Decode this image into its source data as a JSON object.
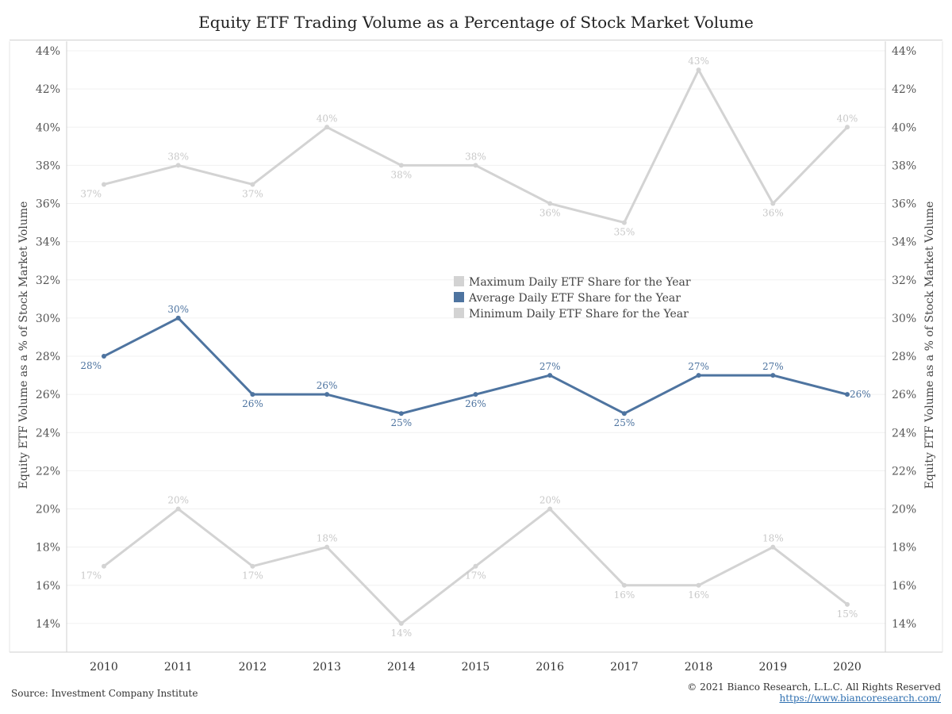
{
  "chart_data": {
    "type": "line",
    "title": "Equity ETF Trading Volume as a Percentage of Stock Market Volume",
    "ylabel": "Equity ETF Volume as a % of Stock Market Volume",
    "x": [
      "2010",
      "2011",
      "2012",
      "2013",
      "2014",
      "2015",
      "2016",
      "2017",
      "2018",
      "2019",
      "2020"
    ],
    "ylim": [
      12.5,
      44.5
    ],
    "yticks": [
      14,
      16,
      18,
      20,
      22,
      24,
      26,
      28,
      30,
      32,
      34,
      36,
      38,
      40,
      42,
      44
    ],
    "ytick_labels": [
      "14%",
      "16%",
      "18%",
      "20%",
      "22%",
      "24%",
      "26%",
      "28%",
      "30%",
      "32%",
      "34%",
      "36%",
      "38%",
      "40%",
      "42%",
      "44%"
    ],
    "series": [
      {
        "name": "Maximum Daily ETF Share for the Year",
        "color": "#d3d3d3",
        "values": [
          37,
          38,
          37,
          40,
          38,
          38,
          36,
          35,
          43,
          36,
          40
        ],
        "labels": [
          "37%",
          "38%",
          "37%",
          "40%",
          "38%",
          "38%",
          "36%",
          "35%",
          "43%",
          "36%",
          "40%"
        ]
      },
      {
        "name": "Average Daily ETF Share for the Year",
        "color": "#4e74a0",
        "values": [
          28,
          30,
          26,
          26,
          25,
          26,
          27,
          25,
          27,
          27,
          26
        ],
        "labels": [
          "28%",
          "30%",
          "26%",
          "26%",
          "25%",
          "26%",
          "27%",
          "25%",
          "27%",
          "27%",
          "26%"
        ]
      },
      {
        "name": "Minimum Daily ETF Share for the Year",
        "color": "#d3d3d3",
        "values": [
          17,
          20,
          17,
          18,
          14,
          17,
          20,
          16,
          16,
          18,
          15
        ],
        "labels": [
          "17%",
          "20%",
          "17%",
          "18%",
          "14%",
          "17%",
          "20%",
          "16%",
          "16%",
          "18%",
          "15%"
        ]
      }
    ],
    "legend_position": "center",
    "grid": true
  },
  "footer": {
    "source": "Source: Investment Company Institute",
    "copyright": "© 2021 Bianco Research, L.L.C. All Rights Reserved",
    "url": "https://www.biancoresearch.com/"
  }
}
